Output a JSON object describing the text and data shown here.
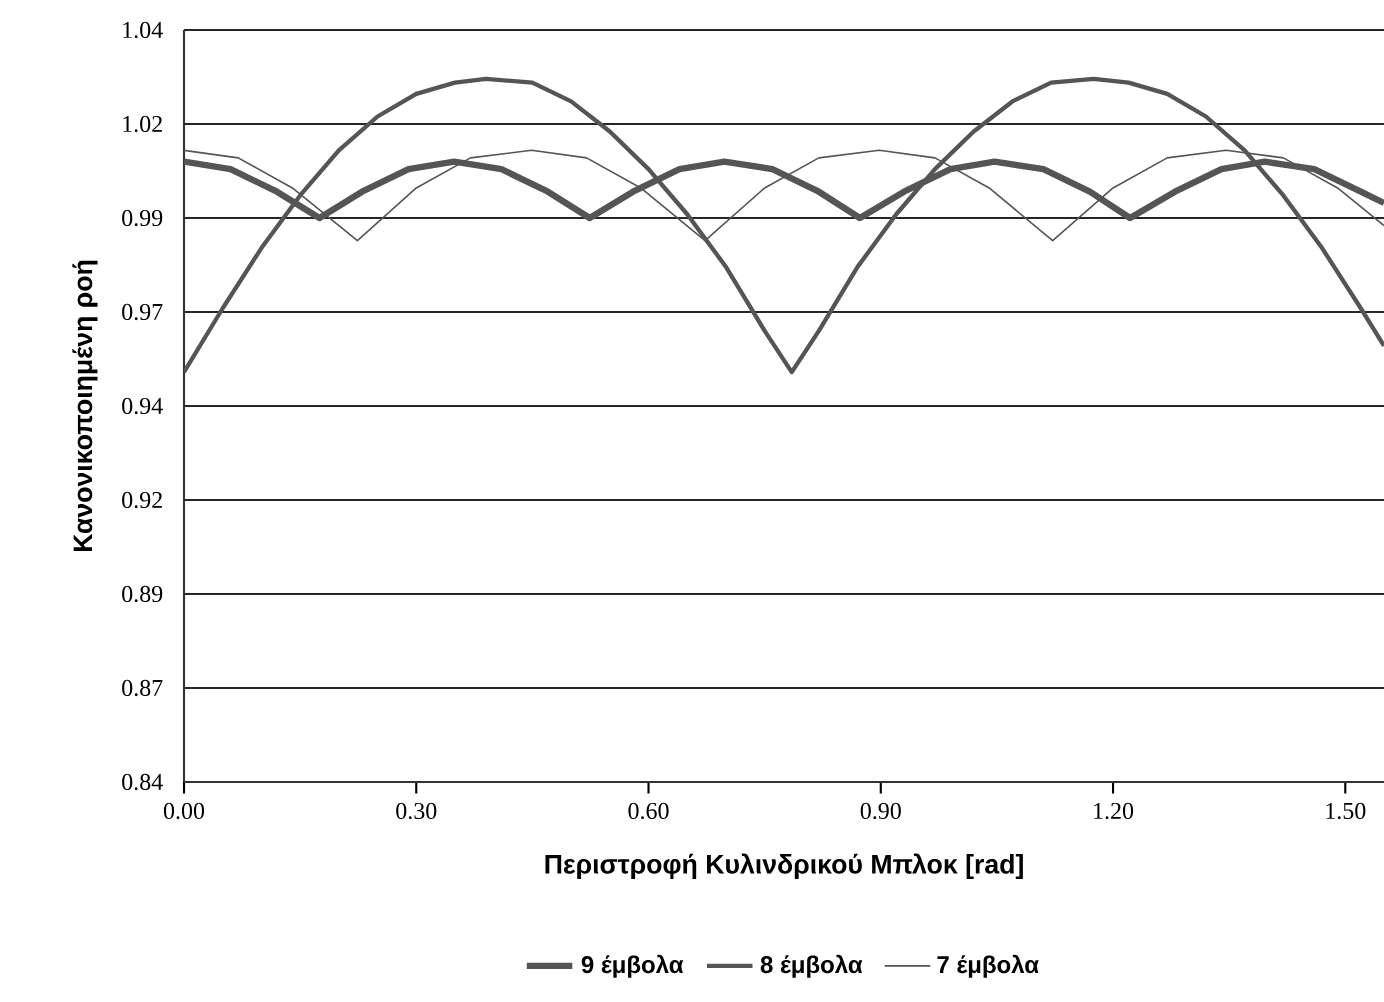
{
  "chart_data": {
    "type": "line",
    "xlabel": "Περιστροφή Κυλινδρικού Μπλοκ [rad]",
    "ylabel": "Κανονικοποιημένη ροή",
    "xlim": [
      0,
      1.55
    ],
    "xticks": [
      {
        "value": 0,
        "label": "0.00"
      },
      {
        "value": 0.3,
        "label": "0.30"
      },
      {
        "value": 0.6,
        "label": "0.60"
      },
      {
        "value": 0.9,
        "label": "0.90"
      },
      {
        "value": 1.2,
        "label": "1.20"
      },
      {
        "value": 1.5,
        "label": "1.50"
      }
    ],
    "ylim": [
      0.84,
      1.04
    ],
    "yticks": [
      0.84,
      {
        "value": 0.865,
        "label": "0.87"
      },
      0.89,
      {
        "value": 0.915,
        "label": "0.92"
      },
      0.94,
      {
        "value": 0.965,
        "label": "0.97"
      },
      0.99,
      {
        "value": 1.015,
        "label": "1.02"
      },
      1.04
    ],
    "grid": "y",
    "legend": "bottom",
    "marker": "none",
    "line_style": "solid",
    "series": [
      {
        "name": "9 έμβολα",
        "color": "#555555",
        "x": [
          0,
          0.06,
          0.12,
          0.175,
          0.23,
          0.29,
          0.349,
          0.41,
          0.47,
          0.524,
          0.58,
          0.64,
          0.698,
          0.76,
          0.82,
          0.873,
          0.93,
          0.99,
          1.047,
          1.11,
          1.17,
          1.222,
          1.28,
          1.34,
          1.396,
          1.46,
          1.52,
          1.55
        ],
        "values": [
          1.005,
          1.003,
          0.997,
          0.99,
          0.997,
          1.003,
          1.005,
          1.003,
          0.997,
          0.99,
          0.997,
          1.003,
          1.005,
          1.003,
          0.997,
          0.99,
          0.997,
          1.003,
          1.005,
          1.003,
          0.997,
          0.99,
          0.997,
          1.003,
          1.005,
          1.003,
          0.997,
          0.994
        ]
      },
      {
        "name": "8 έμβολα",
        "color": "#555555",
        "x": [
          0,
          0.05,
          0.1,
          0.15,
          0.2,
          0.25,
          0.3,
          0.35,
          0.39,
          0.45,
          0.5,
          0.55,
          0.6,
          0.65,
          0.7,
          0.75,
          0.785,
          0.82,
          0.87,
          0.92,
          0.97,
          1.02,
          1.07,
          1.12,
          1.175,
          1.22,
          1.27,
          1.32,
          1.37,
          1.42,
          1.47,
          1.52,
          1.55
        ],
        "values": [
          0.949,
          0.966,
          0.982,
          0.996,
          1.008,
          1.017,
          1.023,
          1.026,
          1.027,
          1.026,
          1.021,
          1.013,
          1.003,
          0.991,
          0.977,
          0.96,
          0.949,
          0.96,
          0.977,
          0.991,
          1.003,
          1.013,
          1.021,
          1.026,
          1.027,
          1.026,
          1.023,
          1.017,
          1.008,
          0.996,
          0.982,
          0.966,
          0.956
        ]
      },
      {
        "name": "7 έμβολα",
        "color": "#555555",
        "x": [
          0,
          0.07,
          0.14,
          0.224,
          0.3,
          0.37,
          0.449,
          0.52,
          0.59,
          0.673,
          0.75,
          0.82,
          0.898,
          0.97,
          1.04,
          1.122,
          1.2,
          1.27,
          1.346,
          1.42,
          1.49,
          1.55
        ],
        "values": [
          1.008,
          1.006,
          0.998,
          0.984,
          0.998,
          1.006,
          1.008,
          1.006,
          0.998,
          0.984,
          0.998,
          1.006,
          1.008,
          1.006,
          0.998,
          0.984,
          0.998,
          1.006,
          1.008,
          1.006,
          0.998,
          0.988
        ]
      }
    ]
  }
}
